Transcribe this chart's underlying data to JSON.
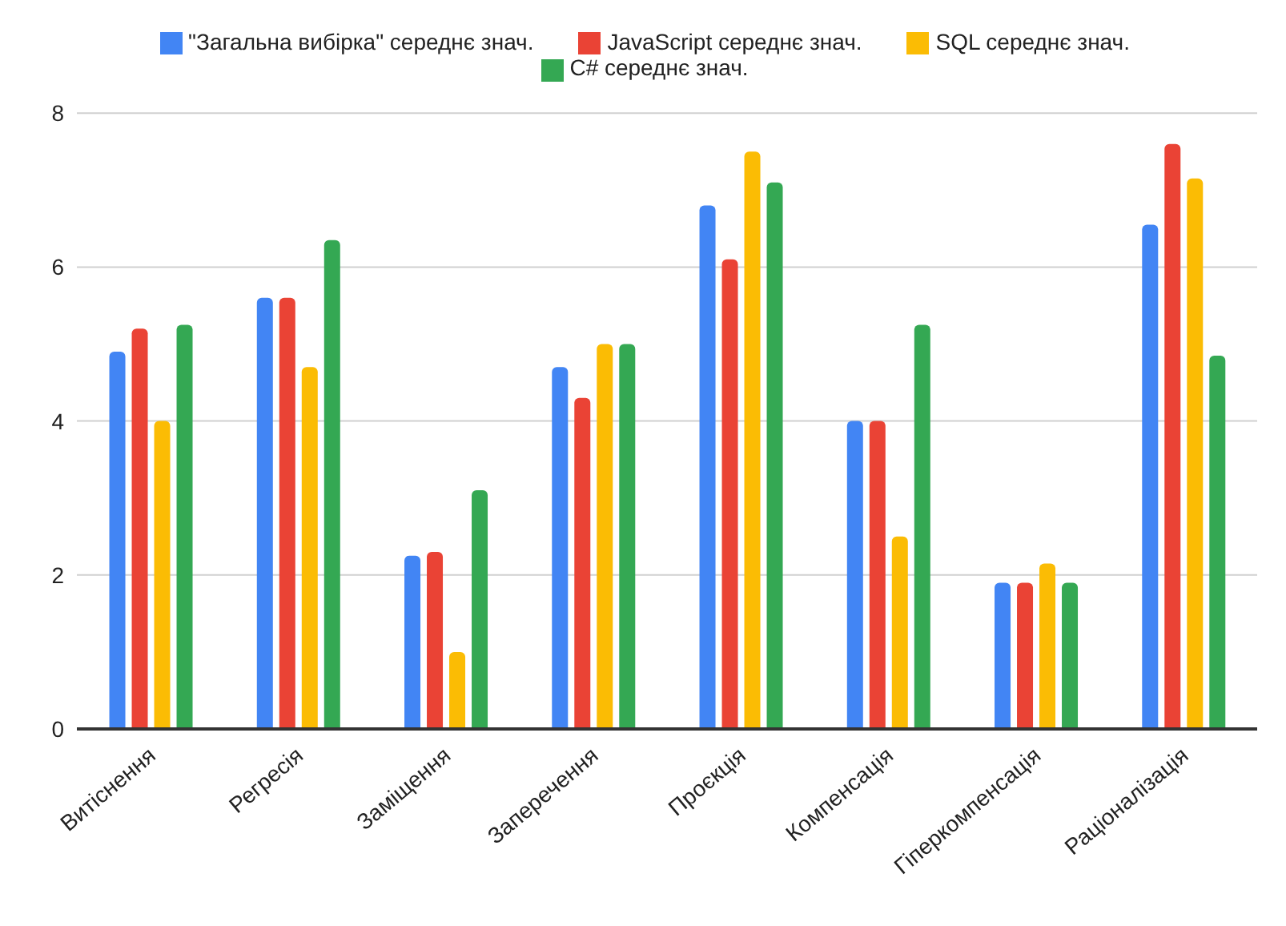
{
  "chart_data": {
    "type": "bar",
    "categories": [
      "Витіснення",
      "Регресія",
      "Заміщення",
      "Заперечення",
      "Проєкція",
      "Компенсація",
      "Гіперкомпенсація",
      "Раціоналізація"
    ],
    "series": [
      {
        "name": "\"Загальна вибірка\" середнє знач.",
        "color": "#4285f4",
        "values": [
          4.9,
          5.6,
          2.25,
          4.7,
          6.8,
          4.0,
          1.9,
          6.55
        ]
      },
      {
        "name": "JavaScript середнє знач.",
        "color": "#ea4335",
        "values": [
          5.2,
          5.6,
          2.3,
          4.3,
          6.1,
          4.0,
          1.9,
          7.6
        ]
      },
      {
        "name": "SQL середнє знач.",
        "color": "#fbbc04",
        "values": [
          4.0,
          4.7,
          1.0,
          5.0,
          7.5,
          2.5,
          2.15,
          7.15
        ]
      },
      {
        "name": "C# середнє знач.",
        "color": "#34a853",
        "values": [
          5.25,
          6.35,
          3.1,
          5.0,
          7.1,
          5.25,
          1.9,
          4.85
        ]
      }
    ],
    "ylim": [
      0,
      8
    ],
    "yticks": [
      0,
      2,
      4,
      6,
      8
    ],
    "grid": "y",
    "legend": "top"
  }
}
